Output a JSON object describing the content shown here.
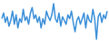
{
  "chart_data": {
    "type": "line",
    "color": "#3a8fd8",
    "tick_labels": false,
    "grid": false,
    "x": [
      0,
      1,
      2,
      3,
      4,
      5,
      6,
      7,
      8,
      9,
      10,
      11,
      12,
      13,
      14,
      15,
      16,
      17,
      18,
      19,
      20,
      21,
      22,
      23,
      24,
      25,
      26,
      27,
      28,
      29,
      30,
      31,
      32,
      33,
      34,
      35,
      36,
      37,
      38,
      39,
      40,
      41,
      42,
      43,
      44,
      45,
      46,
      47,
      48,
      49,
      50,
      51,
      52,
      53,
      54,
      55,
      56,
      57,
      58,
      59
    ],
    "values": [
      55,
      70,
      45,
      60,
      35,
      50,
      75,
      40,
      65,
      30,
      55,
      45,
      80,
      50,
      60,
      40,
      70,
      85,
      55,
      65,
      45,
      60,
      30,
      55,
      40,
      75,
      60,
      50,
      65,
      95,
      55,
      45,
      70,
      35,
      60,
      50,
      40,
      65,
      55,
      75,
      45,
      20,
      50,
      60,
      40,
      55,
      70,
      30,
      65,
      50,
      45,
      80,
      55,
      0,
      60,
      70,
      45,
      65,
      55,
      75
    ],
    "xlim": [
      0,
      59
    ],
    "ylim": [
      0,
      100
    ]
  }
}
